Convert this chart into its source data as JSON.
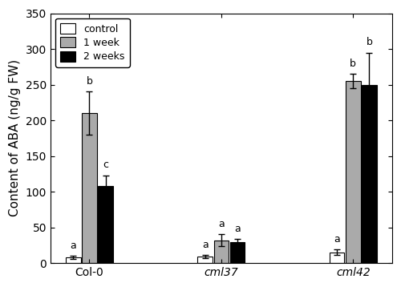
{
  "groups": [
    "Col-0",
    "cml37",
    "cml42"
  ],
  "group_labels_italic": [
    false,
    true,
    true
  ],
  "conditions": [
    "control",
    "1 week",
    "2 weeks"
  ],
  "bar_colors": [
    "white",
    "#aaaaaa",
    "black"
  ],
  "bar_edgecolor": "black",
  "values": [
    [
      8,
      210,
      108
    ],
    [
      9,
      32,
      29
    ],
    [
      15,
      255,
      250
    ]
  ],
  "errors": [
    [
      2,
      30,
      15
    ],
    [
      2,
      8,
      5
    ],
    [
      4,
      10,
      45
    ]
  ],
  "sig_labels": [
    [
      "a",
      "b",
      "c"
    ],
    [
      "a",
      "a",
      "a"
    ],
    [
      "a",
      "b",
      "b"
    ]
  ],
  "ylabel": "Content of ABA (ng/g FW)",
  "ylim": [
    0,
    350
  ],
  "yticks": [
    0,
    50,
    100,
    150,
    200,
    250,
    300,
    350
  ],
  "bar_width": 0.25,
  "group_centers": [
    1.0,
    3.2,
    5.4
  ],
  "offsets": [
    -0.27,
    0.0,
    0.27
  ],
  "legend_labels": [
    "control",
    "1 week",
    "2 weeks"
  ],
  "sig_fontsize": 9,
  "axis_fontsize": 11,
  "tick_fontsize": 10,
  "legend_fontsize": 9
}
